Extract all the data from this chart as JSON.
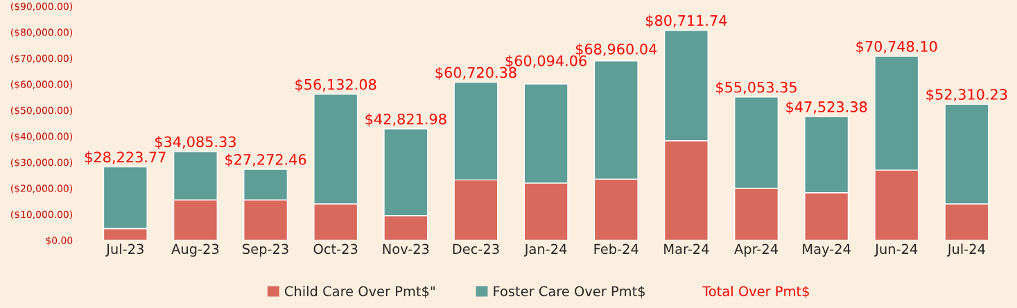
{
  "chart_data": {
    "type": "bar",
    "stacked": true,
    "categories": [
      "Jul-23",
      "Aug-23",
      "Sep-23",
      "Oct-23",
      "Nov-23",
      "Dec-23",
      "Jan-24",
      "Feb-24",
      "Mar-24",
      "Apr-24",
      "May-24",
      "Jun-24",
      "Jul-24"
    ],
    "series": [
      {
        "name": "Child Care Over Pmt$\"",
        "color": "#d9695c",
        "values": [
          4500,
          15500,
          15500,
          14000,
          9500,
          23200,
          22000,
          23500,
          38300,
          20000,
          18300,
          27000,
          14000
        ]
      },
      {
        "name": "Foster Care Over Pmt$",
        "color": "#5f9e97",
        "values": [
          23723.77,
          18585.33,
          11772.46,
          42132.08,
          33321.98,
          37520.38,
          38094.06,
          45460.04,
          42411.74,
          35053.35,
          29223.38,
          43748.1,
          38310.23
        ]
      }
    ],
    "totals": [
      "$28,223.77",
      "$34,085.33",
      "$27,272.46",
      "$56,132.08",
      "$42,821.98",
      "$60,720.38",
      "$60,094.06",
      "$68,960.04",
      "$80,711.74",
      "$55,053.35",
      "$47,523.38",
      "$70,748.10",
      "$52,310.23"
    ],
    "annotations": [
      "Total Over Pmt$"
    ],
    "ylim": [
      0,
      90000
    ],
    "yticks": [
      {
        "value": 0,
        "label": "$0.00"
      },
      {
        "value": 10000,
        "label": "($10,000.00)"
      },
      {
        "value": 20000,
        "label": "($20,000.00)"
      },
      {
        "value": 30000,
        "label": "($30,000.00)"
      },
      {
        "value": 40000,
        "label": "($40,000.00)"
      },
      {
        "value": 50000,
        "label": "($50,000.00)"
      },
      {
        "value": 60000,
        "label": "($60,000.00)"
      },
      {
        "value": 70000,
        "label": "($70,000.00)"
      },
      {
        "value": 80000,
        "label": "($80,000.00)"
      },
      {
        "value": 90000,
        "label": "($90,000.00)"
      }
    ],
    "grid": false,
    "legend": "bottom"
  }
}
